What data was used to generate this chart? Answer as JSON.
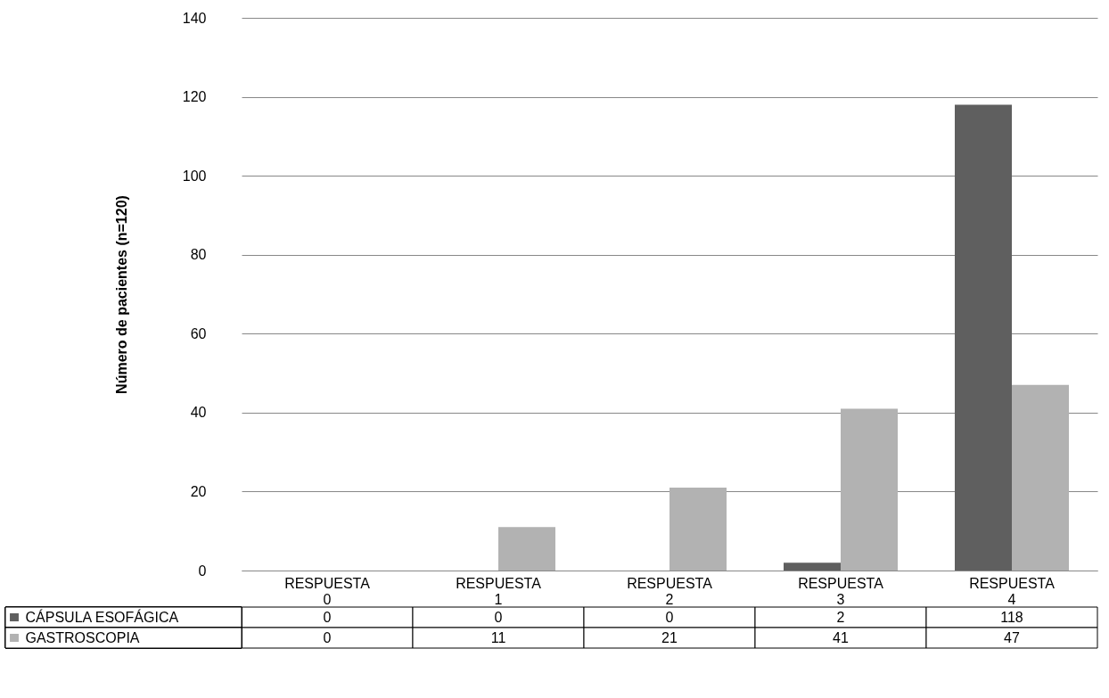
{
  "chart_data": {
    "type": "bar",
    "ylabel": "Número de pacientes  (n=120)",
    "categories": [
      "RESPUESTA 0",
      "RESPUESTA 1",
      "RESPUESTA 2",
      "RESPUESTA 3",
      "RESPUESTA 4"
    ],
    "series": [
      {
        "name": "CÁPSULA ESOFÁGICA",
        "color": "#5f5f5f",
        "values": [
          0,
          0,
          0,
          2,
          118
        ]
      },
      {
        "name": "GASTROSCOPIA",
        "color": "#b2b2b2",
        "values": [
          0,
          11,
          21,
          41,
          47
        ]
      }
    ],
    "ylim": [
      0,
      140
    ],
    "yticks": [
      0,
      20,
      40,
      60,
      80,
      100,
      120,
      140
    ],
    "grid": "y",
    "legend": "bottom left",
    "data_labels": true
  }
}
